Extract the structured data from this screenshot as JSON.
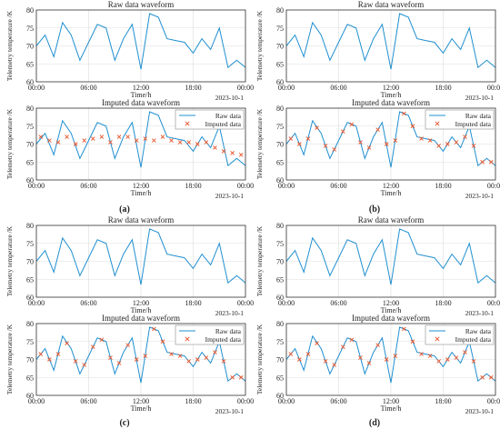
{
  "colors": {
    "raw": "#1f8fd0",
    "imputed": "#e8542a",
    "axis": "#333333"
  },
  "chart_data": [
    {
      "panel_label": "(a)",
      "charts": [
        {
          "type": "line",
          "title": "Raw data waveform",
          "xlabel": "Time/h",
          "ylabel": "Telemetry temperature /K",
          "date_label": "2023-10-1",
          "x_ticks": [
            "00:00",
            "06:00",
            "12:00",
            "18:00",
            "00:00"
          ],
          "y_ticks": [
            "60",
            "65",
            "70",
            "75",
            "80"
          ],
          "ylim": [
            60,
            80
          ],
          "xlim": [
            0,
            24
          ],
          "grid": true,
          "legend": false,
          "series_ref": "raw"
        },
        {
          "type": "line",
          "title": "Imputed data waveform",
          "xlabel": "Time/h",
          "ylabel": "Telemetry temperature /K",
          "date_label": "2023-10-1",
          "x_ticks": [
            "00:00",
            "06:00",
            "12:00",
            "18:00",
            "00:00"
          ],
          "y_ticks": [
            "60",
            "65",
            "70",
            "75",
            "80"
          ],
          "ylim": [
            60,
            80
          ],
          "xlim": [
            0,
            24
          ],
          "grid": true,
          "legend": true,
          "legend_position": "top-right",
          "legend_labels": [
            "Raw data",
            "Imputed data"
          ],
          "series_ref": "raw",
          "imputed_mode": "noisy"
        }
      ]
    },
    {
      "panel_label": "(b)",
      "charts": [
        {
          "type": "line",
          "title": "Raw data waveform",
          "xlabel": "Time/h",
          "ylabel": "Telemetry temperature /K",
          "date_label": "2023-10-1",
          "x_ticks": [
            "00:00",
            "06:00",
            "12:00",
            "18:00",
            "00:00"
          ],
          "y_ticks": [
            "60",
            "65",
            "70",
            "75",
            "80"
          ],
          "ylim": [
            60,
            80
          ],
          "xlim": [
            0,
            24
          ],
          "grid": true,
          "legend": false,
          "series_ref": "raw"
        },
        {
          "type": "line",
          "title": "Imputed data waveform",
          "xlabel": "Time/h",
          "ylabel": "Telemetry temperature /K",
          "date_label": "2023-10-1",
          "x_ticks": [
            "00:00",
            "06:00",
            "12:00",
            "18:00",
            "00:00"
          ],
          "y_ticks": [
            "60",
            "65",
            "70",
            "75",
            "80"
          ],
          "ylim": [
            60,
            80
          ],
          "xlim": [
            0,
            24
          ],
          "grid": true,
          "legend": true,
          "legend_position": "top-right",
          "legend_labels": [
            "Raw data",
            "Imputed data"
          ],
          "series_ref": "raw",
          "imputed_mode": "close"
        }
      ]
    },
    {
      "panel_label": "(c)",
      "charts": [
        {
          "type": "line",
          "title": "Raw data waveform",
          "xlabel": "Time/h",
          "ylabel": "Telemetry temperature /K",
          "date_label": "2023-10-1",
          "x_ticks": [
            "00:00",
            "06:00",
            "12:00",
            "18:00",
            "00:00"
          ],
          "y_ticks": [
            "60",
            "65",
            "70",
            "75",
            "80"
          ],
          "ylim": [
            60,
            80
          ],
          "xlim": [
            0,
            24
          ],
          "grid": true,
          "legend": false,
          "series_ref": "raw"
        },
        {
          "type": "line",
          "title": "Imputed data waveform",
          "xlabel": "Time/h",
          "ylabel": "Telemetry temperature /K",
          "date_label": "2023-10-1",
          "x_ticks": [
            "00:00",
            "06:00",
            "12:00",
            "18:00",
            "00:00"
          ],
          "y_ticks": [
            "60",
            "65",
            "70",
            "75",
            "80"
          ],
          "ylim": [
            60,
            80
          ],
          "xlim": [
            0,
            24
          ],
          "grid": true,
          "legend": true,
          "legend_position": "top-right",
          "legend_labels": [
            "Raw data",
            "Imputed data"
          ],
          "series_ref": "raw",
          "imputed_mode": "close"
        }
      ]
    },
    {
      "panel_label": "(d)",
      "charts": [
        {
          "type": "line",
          "title": "Raw data waveform",
          "xlabel": "Time/h",
          "ylabel": "Telemetry temperature /K",
          "date_label": "2023-10-1",
          "x_ticks": [
            "00:00",
            "06:00",
            "12:00",
            "18:00",
            "00:00"
          ],
          "y_ticks": [
            "60",
            "65",
            "70",
            "75",
            "80"
          ],
          "ylim": [
            60,
            80
          ],
          "xlim": [
            0,
            24
          ],
          "grid": true,
          "legend": false,
          "series_ref": "raw"
        },
        {
          "type": "line",
          "title": "Imputed data waveform",
          "xlabel": "Time/h",
          "ylabel": "Telemetry temperature /K",
          "date_label": "2023-10-1",
          "x_ticks": [
            "00:00",
            "06:00",
            "12:00",
            "18:00",
            "00:00"
          ],
          "y_ticks": [
            "60",
            "65",
            "70",
            "75",
            "80"
          ],
          "ylim": [
            60,
            80
          ],
          "xlim": [
            0,
            24
          ],
          "grid": true,
          "legend": true,
          "legend_position": "top-right",
          "legend_labels": [
            "Raw data",
            "Imputed data"
          ],
          "series_ref": "raw",
          "imputed_mode": "close"
        }
      ]
    }
  ],
  "series": {
    "raw": {
      "x": [
        0,
        1,
        2,
        3,
        4,
        5,
        6,
        7,
        8,
        9,
        10,
        11,
        12,
        13,
        14,
        15,
        16,
        17,
        18,
        19,
        20,
        21,
        22,
        23,
        24
      ],
      "y": [
        70,
        73,
        67,
        76.5,
        73,
        66,
        71,
        76,
        75,
        66,
        72,
        76,
        63.5,
        79,
        78,
        72,
        71.5,
        71,
        68,
        72,
        69,
        75,
        64,
        66,
        64
      ]
    },
    "imputed_noisy": {
      "x": [
        0.5,
        1.5,
        2.5,
        3.5,
        4.5,
        5.5,
        6.5,
        7.5,
        8.5,
        9.5,
        10.5,
        11.5,
        12.5,
        13.5,
        14.5,
        15.5,
        16.5,
        17.5,
        18.5,
        19.5,
        20.5,
        21.5,
        22.5,
        23.5
      ],
      "y": [
        72,
        71,
        70.5,
        72,
        70,
        71,
        71.5,
        72,
        70.5,
        72,
        72,
        71,
        71.5,
        71,
        72,
        71,
        70.5,
        70.5,
        70,
        70.5,
        69,
        68,
        67.5,
        67
      ]
    },
    "imputed_close": {
      "x": [
        0.5,
        1.5,
        2.5,
        3.5,
        4.5,
        5.5,
        6.5,
        7.5,
        8.5,
        9.5,
        10.5,
        11.5,
        12.5,
        13.5,
        14.5,
        15.5,
        16.5,
        17.5,
        18.5,
        19.5,
        20.5,
        21.5,
        22.5,
        23.5
      ],
      "y": [
        71.5,
        70,
        71.5,
        74.5,
        69.5,
        68.5,
        73.5,
        75.5,
        70.5,
        69,
        74,
        70,
        71,
        78.5,
        75,
        71.5,
        71,
        69.5,
        70,
        70.5,
        72,
        69.5,
        65,
        65
      ]
    }
  }
}
